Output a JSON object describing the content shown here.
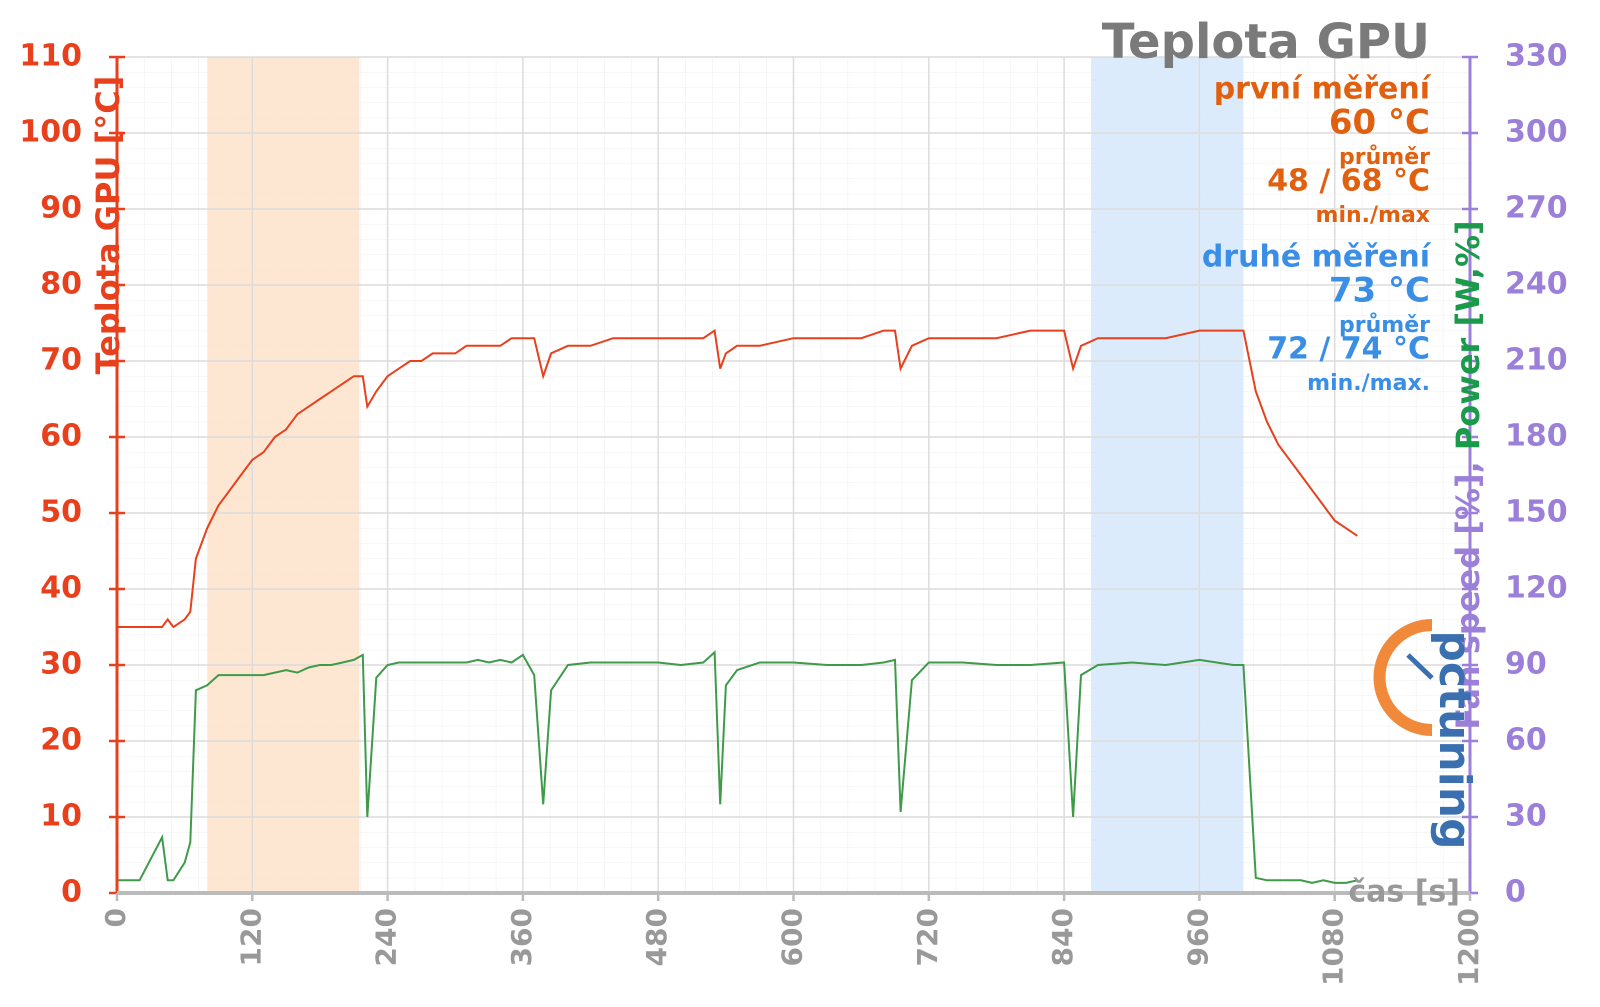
{
  "chart_data": {
    "type": "line",
    "title": "Teplota GPU",
    "ylabel": "Teplota GPU [°C]",
    "y2label": [
      {
        "text": "Fan speed [%], ",
        "color": "#9b7fd8"
      },
      {
        "text": "Power [W,%]",
        "color": "#1a9a4a"
      }
    ],
    "xlabel": "čas [s]",
    "logo": "pctuning",
    "annotations": [
      {
        "text": "první měření",
        "color": "#e06010",
        "size": 30
      },
      {
        "text": "60 °C",
        "color": "#e06010",
        "size": 34
      },
      {
        "text": "průměr",
        "color": "#e06010",
        "size": 22
      },
      {
        "text": "48 / 68 °C",
        "color": "#e06010",
        "size": 30
      },
      {
        "text": "min./max",
        "color": "#e06010",
        "size": 22
      },
      {
        "text": "druhé měření",
        "color": "#3a8ee6",
        "size": 30
      },
      {
        "text": "73 °C",
        "color": "#3a8ee6",
        "size": 34
      },
      {
        "text": "průměr",
        "color": "#3a8ee6",
        "size": 22
      },
      {
        "text": "72 / 74 °C",
        "color": "#3a8ee6",
        "size": 30
      },
      {
        "text": "min./max.",
        "color": "#3a8ee6",
        "size": 22
      }
    ],
    "highlights": [
      {
        "xrange": [
          80,
          215
        ],
        "color": "#fde3cb"
      },
      {
        "xrange": [
          864,
          999
        ],
        "color": "#d6e8fb"
      }
    ],
    "x": [
      0,
      20,
      40,
      45,
      50,
      60,
      65,
      70,
      80,
      90,
      100,
      110,
      120,
      130,
      140,
      150,
      160,
      170,
      180,
      190,
      200,
      210,
      218,
      222,
      230,
      240,
      250,
      260,
      270,
      280,
      290,
      300,
      310,
      320,
      330,
      340,
      350,
      360,
      370,
      378,
      385,
      400,
      420,
      440,
      460,
      480,
      500,
      520,
      530,
      535,
      540,
      550,
      570,
      600,
      630,
      660,
      680,
      690,
      695,
      705,
      720,
      750,
      780,
      810,
      840,
      848,
      855,
      870,
      900,
      930,
      960,
      990,
      999,
      1010,
      1020,
      1030,
      1040,
      1050,
      1060,
      1070,
      1080,
      1090,
      1100
    ],
    "series": [
      {
        "name": "Teplota GPU",
        "color": "#e8401c",
        "values": [
          35,
          35,
          35,
          36,
          35,
          36,
          37,
          44,
          48,
          51,
          53,
          55,
          57,
          58,
          60,
          61,
          63,
          64,
          65,
          66,
          67,
          68,
          68,
          64,
          66,
          68,
          69,
          70,
          70,
          71,
          71,
          71,
          72,
          72,
          72,
          72,
          73,
          73,
          73,
          68,
          71,
          72,
          72,
          73,
          73,
          73,
          73,
          73,
          74,
          69,
          71,
          72,
          72,
          73,
          73,
          73,
          74,
          74,
          69,
          72,
          73,
          73,
          73,
          74,
          74,
          69,
          72,
          73,
          73,
          73,
          74,
          74,
          74,
          66,
          62,
          59,
          57,
          55,
          53,
          51,
          49,
          48,
          47
        ]
      },
      {
        "name": "Power",
        "color": "#3f9a4a",
        "axis": "y2",
        "values": [
          5,
          5,
          22,
          5,
          5,
          12,
          20,
          80,
          82,
          86,
          86,
          86,
          86,
          86,
          87,
          88,
          87,
          89,
          90,
          90,
          91,
          92,
          94,
          30,
          85,
          90,
          91,
          91,
          91,
          91,
          91,
          91,
          91,
          92,
          91,
          92,
          91,
          94,
          86,
          35,
          80,
          90,
          91,
          91,
          91,
          91,
          90,
          91,
          95,
          35,
          82,
          88,
          91,
          91,
          90,
          90,
          91,
          92,
          32,
          84,
          91,
          91,
          90,
          90,
          91,
          30,
          86,
          90,
          91,
          90,
          92,
          90,
          90,
          6,
          5,
          5,
          5,
          5,
          4,
          5,
          4,
          4,
          5
        ]
      }
    ],
    "xlim": [
      0,
      1200
    ],
    "xticks": [
      0,
      120,
      240,
      360,
      480,
      600,
      720,
      840,
      960,
      1080,
      1200
    ],
    "ylim": [
      0,
      110
    ],
    "yticks": [
      0,
      10,
      20,
      30,
      40,
      50,
      60,
      70,
      80,
      90,
      100,
      110
    ],
    "y2lim": [
      0,
      330
    ],
    "y2ticks": [
      0,
      30,
      60,
      90,
      120,
      150,
      180,
      210,
      240,
      270,
      300,
      330
    ],
    "ycolor": "#e8401c",
    "y2color": "#9b7fd8",
    "xcolor": "#999999",
    "grid": true
  }
}
